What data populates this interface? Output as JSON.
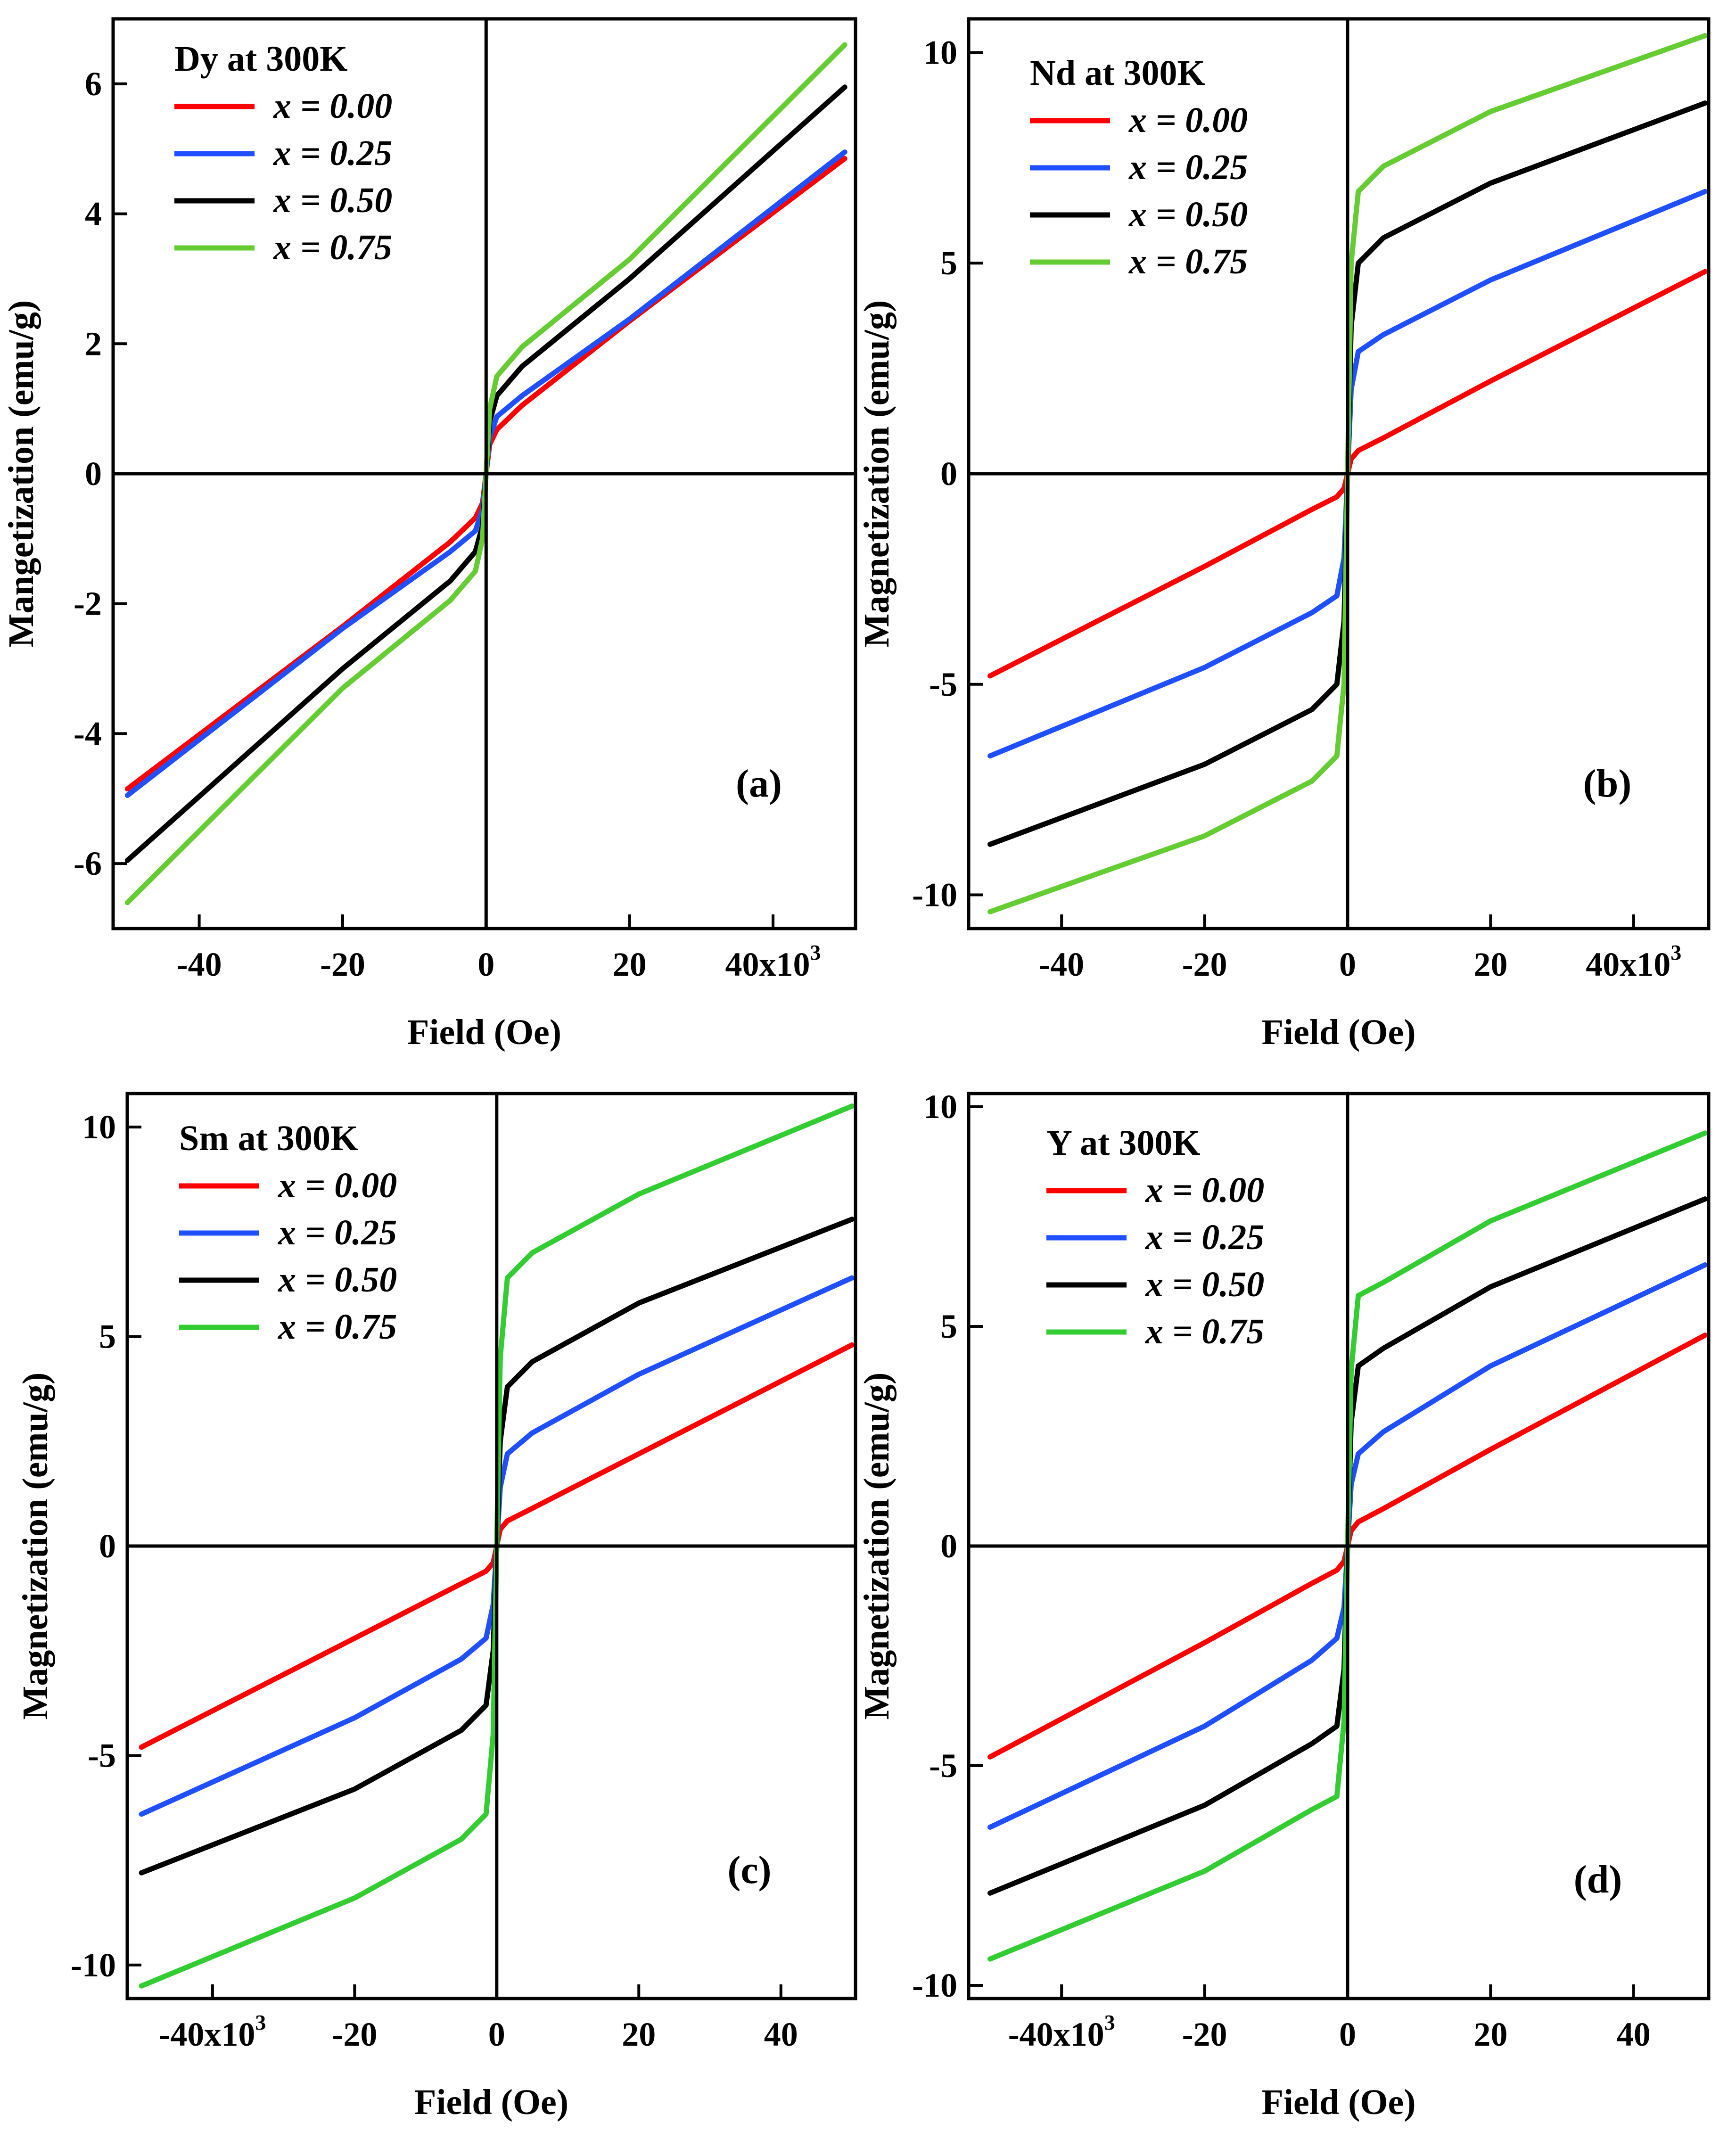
{
  "figure": {
    "panels": [
      {
        "letter": "(a)",
        "legend_title": "Dy at 300K",
        "xlabel": "Field (Oe)",
        "ylabel": "Mangetization (emu/g)",
        "x_tick_labels": [
          "-40",
          "-20",
          "0",
          "20",
          "40x10"
        ],
        "x_tick_exponent": "3",
        "y_tick_labels": [
          "6",
          "4",
          "2",
          "0",
          "-2",
          "-4",
          "-6"
        ]
      },
      {
        "letter": "(b)",
        "legend_title": "Nd at 300K",
        "xlabel": "Field (Oe)",
        "ylabel": "Magnetization (emu/g)",
        "x_tick_labels": [
          "-40",
          "-20",
          "0",
          "20",
          "40x10"
        ],
        "x_tick_exponent": "3",
        "y_tick_labels": [
          "10",
          "5",
          "0",
          "-5",
          "-10"
        ]
      },
      {
        "letter": "(c)",
        "legend_title": "Sm at 300K",
        "xlabel": "Field (Oe)",
        "ylabel": "Magnetization (emu/g)",
        "x_tick_labels": [
          "-40x10",
          "-20",
          "0",
          "20",
          "40"
        ],
        "x_tick_exponent": "3",
        "y_tick_labels": [
          "10",
          "5",
          "0",
          "-5",
          "-10"
        ]
      },
      {
        "letter": "(d)",
        "legend_title": "Y at 300K",
        "xlabel": "Field (Oe)",
        "ylabel": "Magnetization (emu/g)",
        "x_tick_labels": [
          "-40x10",
          "-20",
          "0",
          "20",
          "40"
        ],
        "x_tick_exponent": "3",
        "y_tick_labels": [
          "10",
          "5",
          "0",
          "-5",
          "-10"
        ]
      }
    ]
  },
  "chart_data": [
    {
      "type": "line",
      "title": "Dy at 300K",
      "panel_label": "(a)",
      "xlabel": "Field (Oe)",
      "ylabel": "Mangetization (emu/g)",
      "xlim": [
        -52000,
        51500
      ],
      "ylim": [
        -7.0,
        7.0
      ],
      "x_ticks": [
        -40000,
        -20000,
        0,
        20000,
        40000
      ],
      "y_ticks": [
        -6,
        -4,
        -2,
        0,
        2,
        4,
        6
      ],
      "legend_position": "top-left",
      "series": [
        {
          "name": "x = 0.00",
          "color": "#ff0000",
          "x": [
            -50000,
            -20000,
            -5000,
            -1500,
            -500,
            0,
            500,
            1500,
            5000,
            20000,
            50000
          ],
          "y": [
            -4.85,
            -2.35,
            -1.05,
            -0.68,
            -0.45,
            0,
            0.45,
            0.68,
            1.05,
            2.35,
            4.85
          ]
        },
        {
          "name": "x = 0.25",
          "color": "#1f4fff",
          "x": [
            -50000,
            -20000,
            -5000,
            -1500,
            -500,
            0,
            500,
            1500,
            5000,
            20000,
            50000
          ],
          "y": [
            -4.95,
            -2.38,
            -1.2,
            -0.88,
            -0.55,
            0,
            0.55,
            0.88,
            1.2,
            2.38,
            4.95
          ]
        },
        {
          "name": "x = 0.50",
          "color": "#000000",
          "x": [
            -50000,
            -20000,
            -5000,
            -1500,
            -500,
            0,
            500,
            1500,
            5000,
            20000,
            50000
          ],
          "y": [
            -5.95,
            -3.0,
            -1.65,
            -1.2,
            -0.8,
            0,
            0.8,
            1.2,
            1.65,
            3.0,
            5.95
          ]
        },
        {
          "name": "x = 0.75",
          "color": "#66cc33",
          "x": [
            -50000,
            -20000,
            -5000,
            -1500,
            -500,
            0,
            500,
            1500,
            5000,
            20000,
            50000
          ],
          "y": [
            -6.6,
            -3.3,
            -1.95,
            -1.5,
            -1.0,
            0,
            1.0,
            1.5,
            1.95,
            3.3,
            6.6
          ]
        }
      ]
    },
    {
      "type": "line",
      "title": "Nd at 300K",
      "panel_label": "(b)",
      "xlabel": "Field (Oe)",
      "ylabel": "Magnetization (emu/g)",
      "xlim": [
        -53000,
        50500
      ],
      "ylim": [
        -10.8,
        10.8
      ],
      "x_ticks": [
        -40000,
        -20000,
        0,
        20000,
        40000
      ],
      "y_ticks": [
        -10,
        -5,
        0,
        5,
        10
      ],
      "legend_position": "top-left",
      "series": [
        {
          "name": "x = 0.00",
          "color": "#ff0000",
          "x": [
            -50000,
            -20000,
            -5000,
            -1500,
            -500,
            0,
            500,
            1500,
            5000,
            20000,
            50000
          ],
          "y": [
            -4.8,
            -2.2,
            -0.85,
            -0.55,
            -0.35,
            0,
            0.35,
            0.55,
            0.85,
            2.2,
            4.8
          ]
        },
        {
          "name": "x = 0.25",
          "color": "#1f4fff",
          "x": [
            -50000,
            -20000,
            -5000,
            -1500,
            -500,
            0,
            500,
            1500,
            5000,
            20000,
            50000
          ],
          "y": [
            -6.7,
            -4.6,
            -3.3,
            -2.9,
            -2.0,
            0,
            2.0,
            2.9,
            3.3,
            4.6,
            6.7
          ]
        },
        {
          "name": "x = 0.50",
          "color": "#000000",
          "x": [
            -50000,
            -20000,
            -5000,
            -1500,
            -500,
            0,
            500,
            1500,
            5000,
            20000,
            50000
          ],
          "y": [
            -8.8,
            -6.9,
            -5.6,
            -5.0,
            -3.5,
            0,
            3.5,
            5.0,
            5.6,
            6.9,
            8.8
          ]
        },
        {
          "name": "x = 0.75",
          "color": "#66cc33",
          "x": [
            -50000,
            -20000,
            -5000,
            -1500,
            -500,
            0,
            500,
            1500,
            5000,
            20000,
            50000
          ],
          "y": [
            -10.4,
            -8.6,
            -7.3,
            -6.7,
            -5.0,
            0,
            5.0,
            6.7,
            7.3,
            8.6,
            10.4
          ]
        }
      ]
    },
    {
      "type": "line",
      "title": "Sm at 300K",
      "panel_label": "(c)",
      "xlabel": "Field (Oe)",
      "ylabel": "Magnetization (emu/g)",
      "xlim": [
        -52000,
        50500
      ],
      "ylim": [
        -10.8,
        10.8
      ],
      "x_ticks": [
        -40000,
        -20000,
        0,
        20000,
        40000
      ],
      "y_ticks": [
        -10,
        -5,
        0,
        5,
        10
      ],
      "legend_position": "top-left",
      "series": [
        {
          "name": "x = 0.00",
          "color": "#ff0000",
          "x": [
            -50000,
            -20000,
            -5000,
            -1500,
            -500,
            0,
            500,
            1500,
            5000,
            20000,
            50000
          ],
          "y": [
            -4.8,
            -2.2,
            -0.9,
            -0.6,
            -0.4,
            0,
            0.4,
            0.6,
            0.9,
            2.2,
            4.8
          ]
        },
        {
          "name": "x = 0.25",
          "color": "#1f4fff",
          "x": [
            -50000,
            -20000,
            -5000,
            -1500,
            -500,
            0,
            500,
            1500,
            5000,
            20000,
            50000
          ],
          "y": [
            -6.4,
            -4.1,
            -2.7,
            -2.2,
            -1.4,
            0,
            1.4,
            2.2,
            2.7,
            4.1,
            6.4
          ]
        },
        {
          "name": "x = 0.50",
          "color": "#000000",
          "x": [
            -50000,
            -20000,
            -5000,
            -1500,
            -500,
            0,
            500,
            1500,
            5000,
            20000,
            50000
          ],
          "y": [
            -7.8,
            -5.8,
            -4.4,
            -3.8,
            -2.5,
            0,
            2.5,
            3.8,
            4.4,
            5.8,
            7.8
          ]
        },
        {
          "name": "x = 0.75",
          "color": "#33cc33",
          "x": [
            -50000,
            -20000,
            -5000,
            -1500,
            -500,
            0,
            500,
            1500,
            5000,
            20000,
            50000
          ],
          "y": [
            -10.5,
            -8.4,
            -7.0,
            -6.4,
            -4.5,
            0,
            4.5,
            6.4,
            7.0,
            8.4,
            10.5
          ]
        }
      ]
    },
    {
      "type": "line",
      "title": "Y at 300K",
      "panel_label": "(d)",
      "xlabel": "Field (Oe)",
      "ylabel": "Magnetization (emu/g)",
      "xlim": [
        -53000,
        50500
      ],
      "ylim": [
        -10.3,
        10.3
      ],
      "x_ticks": [
        -40000,
        -20000,
        0,
        20000,
        40000
      ],
      "y_ticks": [
        -10,
        -5,
        0,
        5,
        10
      ],
      "legend_position": "top-left",
      "series": [
        {
          "name": "x = 0.00",
          "color": "#ff0000",
          "x": [
            -50000,
            -20000,
            -5000,
            -1500,
            -500,
            0,
            500,
            1500,
            5000,
            20000,
            50000
          ],
          "y": [
            -4.8,
            -2.2,
            -0.85,
            -0.55,
            -0.35,
            0,
            0.35,
            0.55,
            0.85,
            2.2,
            4.8
          ]
        },
        {
          "name": "x = 0.25",
          "color": "#1f4fff",
          "x": [
            -50000,
            -20000,
            -5000,
            -1500,
            -500,
            0,
            500,
            1500,
            5000,
            20000,
            50000
          ],
          "y": [
            -6.4,
            -4.1,
            -2.6,
            -2.1,
            -1.4,
            0,
            1.4,
            2.1,
            2.6,
            4.1,
            6.4
          ]
        },
        {
          "name": "x = 0.50",
          "color": "#000000",
          "x": [
            -50000,
            -20000,
            -5000,
            -1500,
            -500,
            0,
            500,
            1500,
            5000,
            20000,
            50000
          ],
          "y": [
            -7.9,
            -5.9,
            -4.5,
            -4.1,
            -2.8,
            0,
            2.8,
            4.1,
            4.5,
            5.9,
            7.9
          ]
        },
        {
          "name": "x = 0.75",
          "color": "#33cc33",
          "x": [
            -50000,
            -20000,
            -5000,
            -1500,
            -500,
            0,
            500,
            1500,
            5000,
            20000,
            50000
          ],
          "y": [
            -9.4,
            -7.4,
            -6.0,
            -5.7,
            -4.0,
            0,
            4.0,
            5.7,
            6.0,
            7.4,
            9.4
          ]
        }
      ]
    }
  ]
}
